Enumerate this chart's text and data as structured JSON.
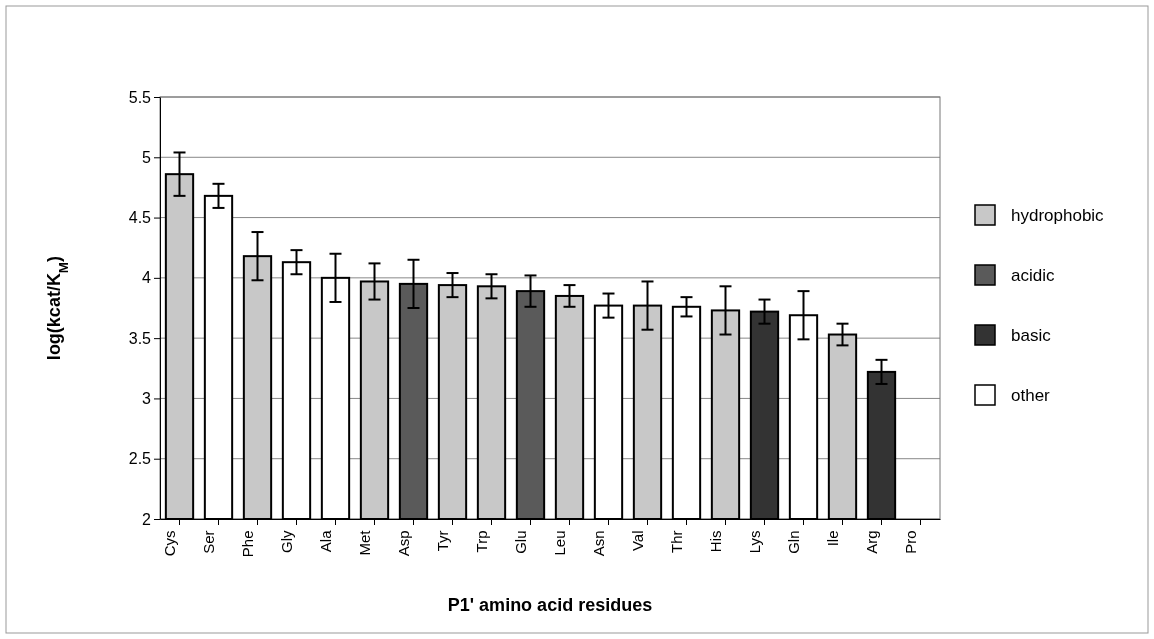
{
  "chart_data": {
    "type": "bar",
    "stacked": true,
    "xlabel": "P1' amino acid residues",
    "ylabel": "log(kcat/K$_{M}$)",
    "categories": [
      "Cys",
      "Ser",
      "Phe",
      "Gly",
      "Ala",
      "Met",
      "Asp",
      "Tyr",
      "Trp",
      "Glu",
      "Leu",
      "Asn",
      "Val",
      "Thr",
      "His",
      "Lys",
      "Gln",
      "Ile",
      "Arg",
      "Pro"
    ],
    "series": [
      {
        "name": "hydrophobic",
        "color": "#c8c8c8",
        "values": [
          4.86,
          null,
          4.18,
          null,
          null,
          3.97,
          null,
          3.94,
          3.93,
          null,
          3.85,
          null,
          3.77,
          null,
          3.73,
          null,
          null,
          3.53,
          null,
          null
        ],
        "errors": [
          0.18,
          null,
          0.2,
          null,
          null,
          0.15,
          null,
          0.1,
          0.1,
          null,
          0.09,
          null,
          0.2,
          null,
          0.2,
          null,
          null,
          0.09,
          null,
          null
        ]
      },
      {
        "name": "acidic",
        "color": "#5a5a5a",
        "values": [
          null,
          null,
          null,
          null,
          null,
          null,
          3.95,
          null,
          null,
          3.89,
          null,
          null,
          null,
          null,
          null,
          null,
          null,
          null,
          null,
          null
        ],
        "errors": [
          null,
          null,
          null,
          null,
          null,
          null,
          0.2,
          null,
          null,
          0.13,
          null,
          null,
          null,
          null,
          null,
          null,
          null,
          null,
          null,
          null
        ]
      },
      {
        "name": "basic",
        "color": "#333333",
        "values": [
          null,
          null,
          null,
          null,
          null,
          null,
          null,
          null,
          null,
          null,
          null,
          null,
          null,
          null,
          null,
          3.72,
          null,
          null,
          3.22,
          null
        ],
        "errors": [
          null,
          null,
          null,
          null,
          null,
          null,
          null,
          null,
          null,
          null,
          null,
          null,
          null,
          null,
          null,
          0.1,
          null,
          null,
          0.1,
          null
        ]
      },
      {
        "name": "other",
        "color": "#ffffff",
        "values": [
          null,
          4.68,
          null,
          4.13,
          4.0,
          null,
          null,
          null,
          null,
          null,
          null,
          3.77,
          null,
          3.76,
          null,
          null,
          3.69,
          null,
          null,
          null
        ],
        "errors": [
          null,
          0.1,
          null,
          0.1,
          0.2,
          null,
          null,
          null,
          null,
          null,
          null,
          0.1,
          null,
          0.08,
          null,
          null,
          0.2,
          null,
          null,
          null
        ]
      }
    ],
    "ylim": [
      2,
      5.5
    ],
    "yticks": [
      2,
      2.5,
      3,
      3.5,
      4,
      4.5,
      5,
      5.5
    ],
    "grid": "y",
    "legend": "right"
  }
}
